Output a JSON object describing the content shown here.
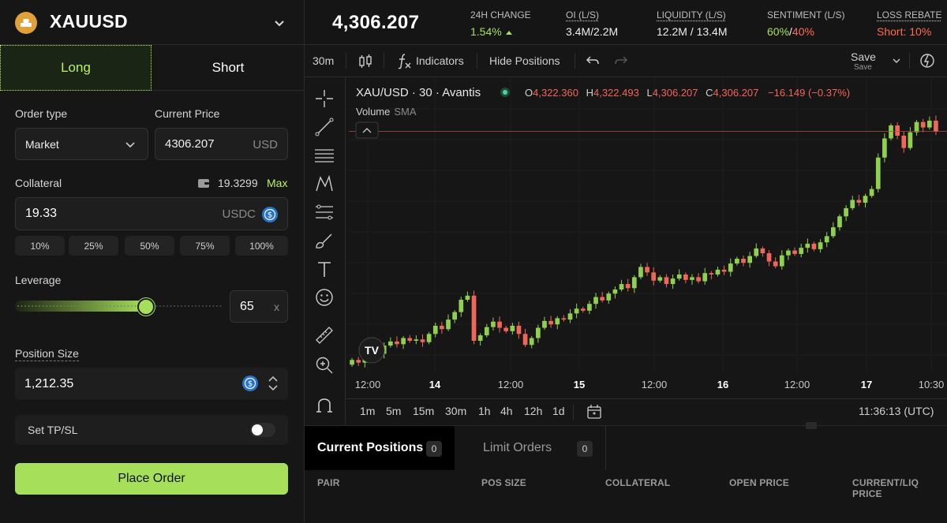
{
  "asset": {
    "name": "XAUUSD"
  },
  "tabs": {
    "long": "Long",
    "short": "Short"
  },
  "form": {
    "order_type_label": "Order type",
    "order_type_value": "Market",
    "current_price_label": "Current Price",
    "current_price_value": "4306.207",
    "current_price_unit": "USD",
    "collateral_label": "Collateral",
    "wallet_balance": "19.3299",
    "max_label": "Max",
    "collateral_value": "19.33",
    "collateral_unit": "USDC",
    "percent_options": [
      "10%",
      "25%",
      "50%",
      "75%",
      "100%"
    ],
    "leverage_label": "Leverage",
    "leverage_value": "65",
    "leverage_unit": "x",
    "leverage_fraction": 0.63,
    "position_size_label": "Position Size",
    "position_size_value": "1,212.35",
    "tpsl_label": "Set TP/SL",
    "tpsl_enabled": false,
    "place_order_label": "Place Order"
  },
  "stats": {
    "price": "4,306.207",
    "change_label": "24H CHANGE",
    "change_value": "1.54%",
    "oi_label": "OI (L/S)",
    "oi_value": "3.4M/2.2M",
    "liquidity_label": "LIQUIDITY (L/S)",
    "liquidity_value": "12.2M / 13.4M",
    "sentiment_label": "SENTIMENT (L/S)",
    "sentiment_long": "60%",
    "sentiment_sep": "/",
    "sentiment_short": "40%",
    "rebate_label": "LOSS REBATE",
    "rebate_value": "Short: 10%"
  },
  "toolbar": {
    "interval": "30m",
    "indicators": "Indicators",
    "hide_positions": "Hide Positions",
    "save": "Save",
    "save_sub": "Save"
  },
  "legend": {
    "symbol": "XAU/USD · 30 · Avantis",
    "o_label": "O",
    "o_value": "4,322.360",
    "h_label": "H",
    "h_value": "4,322.493",
    "l_label": "L",
    "l_value": "4,306.207",
    "c_label": "C",
    "c_value": "4,306.207",
    "change": "−16.149 (−0.37%)",
    "volume": "Volume",
    "sma": "SMA"
  },
  "timeframes": [
    "1m",
    "5m",
    "15m",
    "30m",
    "1h",
    "4h",
    "12h",
    "1d"
  ],
  "clock": "11:36:13 (UTC)",
  "colors": {
    "accent": "#a6e05a",
    "up": "#8fd14f",
    "down": "#f0665a",
    "background": "#161616"
  },
  "chart_data": {
    "type": "candlestick",
    "x_ticks": [
      "12:00",
      "14",
      "12:00",
      "15",
      "12:00",
      "16",
      "12:00",
      "17",
      "10:30"
    ],
    "y_range": [
      3955,
      4345
    ],
    "last_price": 4306.207,
    "series": [
      {
        "o": 3965,
        "c": 3972
      },
      {
        "o": 3972,
        "c": 3968
      },
      {
        "o": 3968,
        "c": 3978
      },
      {
        "o": 3978,
        "c": 3985
      },
      {
        "o": 3985,
        "c": 3981
      },
      {
        "o": 3981,
        "c": 3993
      },
      {
        "o": 3993,
        "c": 3999
      },
      {
        "o": 3999,
        "c": 3995
      },
      {
        "o": 3995,
        "c": 4004
      },
      {
        "o": 4004,
        "c": 4000
      },
      {
        "o": 4000,
        "c": 4002
      },
      {
        "o": 4002,
        "c": 3998
      },
      {
        "o": 3998,
        "c": 4010
      },
      {
        "o": 4010,
        "c": 4022
      },
      {
        "o": 4022,
        "c": 4017
      },
      {
        "o": 4017,
        "c": 4031
      },
      {
        "o": 4031,
        "c": 4042
      },
      {
        "o": 4042,
        "c": 4060
      },
      {
        "o": 4060,
        "c": 4066
      },
      {
        "o": 4066,
        "c": 4000
      },
      {
        "o": 4000,
        "c": 4008
      },
      {
        "o": 4008,
        "c": 4020
      },
      {
        "o": 4020,
        "c": 4028
      },
      {
        "o": 4028,
        "c": 4019
      },
      {
        "o": 4019,
        "c": 4014
      },
      {
        "o": 4014,
        "c": 4022
      },
      {
        "o": 4022,
        "c": 4010
      },
      {
        "o": 4010,
        "c": 3994
      },
      {
        "o": 3994,
        "c": 4004
      },
      {
        "o": 4004,
        "c": 4019
      },
      {
        "o": 4019,
        "c": 4029
      },
      {
        "o": 4029,
        "c": 4024
      },
      {
        "o": 4024,
        "c": 4033
      },
      {
        "o": 4033,
        "c": 4031
      },
      {
        "o": 4031,
        "c": 4040
      },
      {
        "o": 4040,
        "c": 4047
      },
      {
        "o": 4047,
        "c": 4044
      },
      {
        "o": 4044,
        "c": 4054
      },
      {
        "o": 4054,
        "c": 4064
      },
      {
        "o": 4064,
        "c": 4059
      },
      {
        "o": 4059,
        "c": 4069
      },
      {
        "o": 4069,
        "c": 4075
      },
      {
        "o": 4075,
        "c": 4083
      },
      {
        "o": 4083,
        "c": 4077
      },
      {
        "o": 4077,
        "c": 4093
      },
      {
        "o": 4093,
        "c": 4108
      },
      {
        "o": 4108,
        "c": 4100
      },
      {
        "o": 4100,
        "c": 4088
      },
      {
        "o": 4088,
        "c": 4093
      },
      {
        "o": 4093,
        "c": 4083
      },
      {
        "o": 4083,
        "c": 4091
      },
      {
        "o": 4091,
        "c": 4097
      },
      {
        "o": 4097,
        "c": 4089
      },
      {
        "o": 4089,
        "c": 4093
      },
      {
        "o": 4093,
        "c": 4087
      },
      {
        "o": 4087,
        "c": 4099
      },
      {
        "o": 4099,
        "c": 4097
      },
      {
        "o": 4097,
        "c": 4104
      },
      {
        "o": 4104,
        "c": 4101
      },
      {
        "o": 4101,
        "c": 4113
      },
      {
        "o": 4113,
        "c": 4120
      },
      {
        "o": 4120,
        "c": 4114
      },
      {
        "o": 4114,
        "c": 4124
      },
      {
        "o": 4124,
        "c": 4135
      },
      {
        "o": 4135,
        "c": 4128
      },
      {
        "o": 4128,
        "c": 4116
      },
      {
        "o": 4116,
        "c": 4109
      },
      {
        "o": 4109,
        "c": 4125
      },
      {
        "o": 4125,
        "c": 4132
      },
      {
        "o": 4132,
        "c": 4127
      },
      {
        "o": 4127,
        "c": 4136
      },
      {
        "o": 4136,
        "c": 4142
      },
      {
        "o": 4142,
        "c": 4134
      },
      {
        "o": 4134,
        "c": 4144
      },
      {
        "o": 4144,
        "c": 4153
      },
      {
        "o": 4153,
        "c": 4166
      },
      {
        "o": 4166,
        "c": 4182
      },
      {
        "o": 4182,
        "c": 4194
      },
      {
        "o": 4194,
        "c": 4206
      },
      {
        "o": 4206,
        "c": 4202
      },
      {
        "o": 4202,
        "c": 4212
      },
      {
        "o": 4212,
        "c": 4222
      },
      {
        "o": 4222,
        "c": 4268
      },
      {
        "o": 4268,
        "c": 4296
      },
      {
        "o": 4296,
        "c": 4315
      },
      {
        "o": 4315,
        "c": 4300
      },
      {
        "o": 4300,
        "c": 4282
      },
      {
        "o": 4282,
        "c": 4305
      },
      {
        "o": 4305,
        "c": 4320
      },
      {
        "o": 4320,
        "c": 4312
      },
      {
        "o": 4312,
        "c": 4322
      },
      {
        "o": 4322,
        "c": 4306
      }
    ]
  },
  "bottom": {
    "tab_positions": "Current Positions",
    "positions_count": "0",
    "tab_limits": "Limit Orders",
    "limits_count": "0",
    "columns": [
      "PAIR",
      "POS SIZE",
      "COLLATERAL",
      "OPEN PRICE",
      "CURRENT/LIQ PRICE"
    ]
  }
}
